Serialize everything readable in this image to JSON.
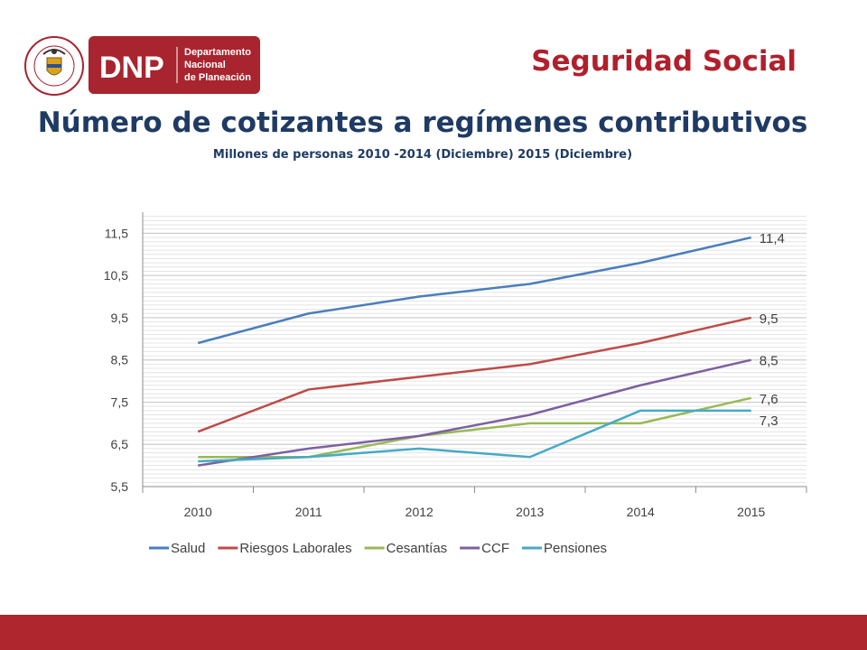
{
  "header": {
    "logo_acronym": "DNP",
    "logo_line1": "Departamento",
    "logo_line2": "Nacional",
    "logo_line3": "de Planeación",
    "seal_text": "REPÚBLICA DE COLOMBIA",
    "section_title": "Seguridad Social"
  },
  "colors": {
    "accent": "#b0262f",
    "title": "#1f3b64"
  },
  "chart_data": {
    "type": "line",
    "title": "Número de cotizantes a regímenes contributivos",
    "subtitle": "Millones de personas 2010 -2014 (Diciembre) 2015 (Diciembre)",
    "xlabel": "",
    "ylabel": "",
    "x": [
      "2010",
      "2011",
      "2012",
      "2013",
      "2014",
      "2015"
    ],
    "ylim": [
      5.5,
      12.0
    ],
    "yticks": [
      "5,5",
      "6,5",
      "7,5",
      "8,5",
      "9,5",
      "10,5",
      "11,5"
    ],
    "grid": true,
    "legend_position": "bottom",
    "series": [
      {
        "name": "Salud",
        "color": "#4a7ebb",
        "values": [
          8.9,
          9.6,
          10.0,
          10.3,
          10.8,
          11.4
        ],
        "end_label": "11,4"
      },
      {
        "name": "Riesgos Laborales",
        "color": "#be4b48",
        "values": [
          6.8,
          7.8,
          8.1,
          8.4,
          8.9,
          9.5
        ],
        "end_label": "9,5"
      },
      {
        "name": "Cesantías",
        "color": "#98b954",
        "values": [
          6.2,
          6.2,
          6.7,
          7.0,
          7.0,
          7.6
        ],
        "end_label": "7,6"
      },
      {
        "name": "CCF",
        "color": "#7d60a0",
        "values": [
          6.0,
          6.4,
          6.7,
          7.2,
          7.9,
          8.5
        ],
        "end_label": "8,5"
      },
      {
        "name": "Pensiones",
        "color": "#46aac5",
        "values": [
          6.1,
          6.2,
          6.4,
          6.2,
          7.3,
          7.3
        ],
        "end_label": "7,3"
      }
    ]
  }
}
